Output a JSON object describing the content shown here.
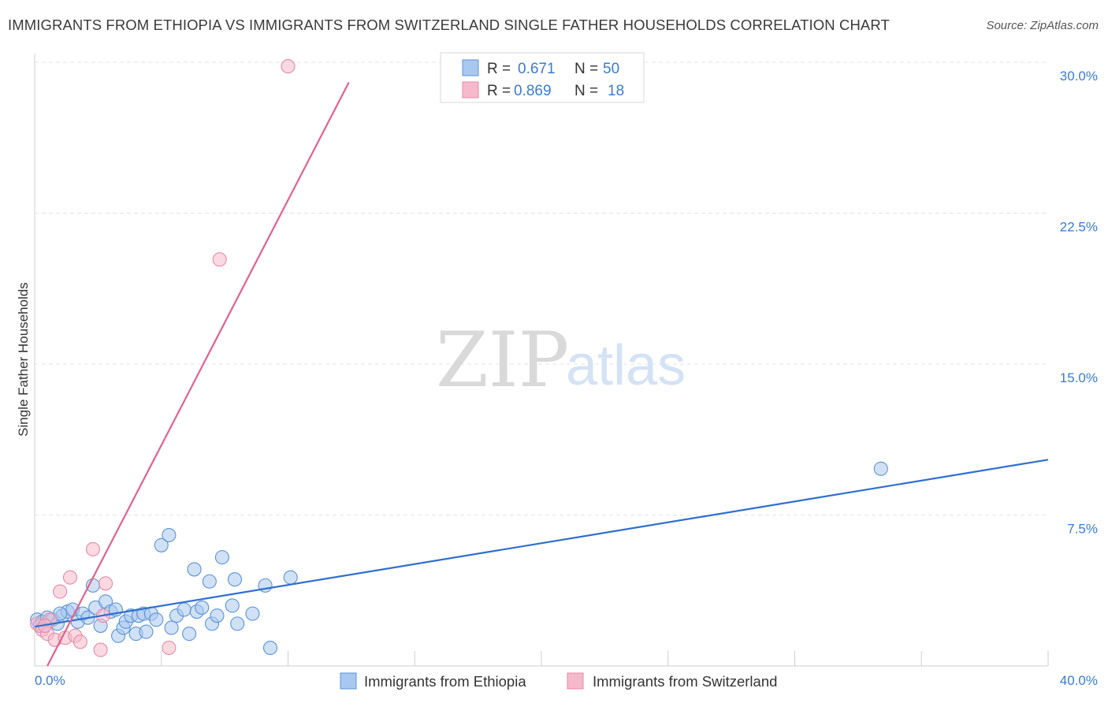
{
  "title": "IMMIGRANTS FROM ETHIOPIA VS IMMIGRANTS FROM SWITZERLAND SINGLE FATHER HOUSEHOLDS CORRELATION CHART",
  "source": "Source: ZipAtlas.com",
  "watermark": {
    "zip": "ZIP",
    "atlas": "atlas"
  },
  "legend_top": [
    {
      "r_label": "R =",
      "r_value": "0.671",
      "n_label": "N =",
      "n_value": "50",
      "color": "#a9c8ef"
    },
    {
      "r_label": "R =",
      "r_value": "0.869",
      "n_label": "N =",
      "n_value": "18",
      "color": "#f6b9cb"
    }
  ],
  "colors": {
    "ethiopia_fill": "#a9c8ef",
    "ethiopia_stroke": "#5b93d6",
    "ethiopia_line": "#2f6fcf",
    "switzerland_fill": "#f6b9cb",
    "switzerland_stroke": "#e58aa6",
    "switzerland_line": "#e2628c",
    "axis_text": "#3b7bd0",
    "grid": "#e3e3e3"
  },
  "chart_data": {
    "type": "scatter",
    "title": "IMMIGRANTS FROM ETHIOPIA VS IMMIGRANTS FROM SWITZERLAND SINGLE FATHER HOUSEHOLDS CORRELATION CHART",
    "xlabel": "",
    "ylabel": "Single Father Households",
    "xlim": [
      0,
      40
    ],
    "ylim": [
      0,
      30
    ],
    "x_tick_labels": [
      "0.0%",
      "40.0%"
    ],
    "y_ticks": [
      7.5,
      15.0,
      22.5,
      30.0
    ],
    "y_tick_labels": [
      "7.5%",
      "15.0%",
      "22.5%",
      "30.0%"
    ],
    "grid": true,
    "legend_placement": "top-center",
    "series": [
      {
        "name": "Immigrants from Ethiopia",
        "trend": [
          [
            0,
            1.95
          ],
          [
            40,
            10.25
          ]
        ],
        "points": [
          [
            0.1,
            2.3
          ],
          [
            0.3,
            2.2
          ],
          [
            0.5,
            2.4
          ],
          [
            0.7,
            2.3
          ],
          [
            0.9,
            2.1
          ],
          [
            1.1,
            2.5
          ],
          [
            1.3,
            2.7
          ],
          [
            1.5,
            2.8
          ],
          [
            1.7,
            2.2
          ],
          [
            1.9,
            2.6
          ],
          [
            2.1,
            2.4
          ],
          [
            2.3,
            4.0
          ],
          [
            2.4,
            2.9
          ],
          [
            2.6,
            2.0
          ],
          [
            2.8,
            3.2
          ],
          [
            3.0,
            2.7
          ],
          [
            3.2,
            2.8
          ],
          [
            3.3,
            1.5
          ],
          [
            3.5,
            1.9
          ],
          [
            3.6,
            2.2
          ],
          [
            3.8,
            2.5
          ],
          [
            4.0,
            1.6
          ],
          [
            4.1,
            2.5
          ],
          [
            4.3,
            2.6
          ],
          [
            4.4,
            1.7
          ],
          [
            4.6,
            2.6
          ],
          [
            4.8,
            2.3
          ],
          [
            5.0,
            6.0
          ],
          [
            5.3,
            6.5
          ],
          [
            5.4,
            1.9
          ],
          [
            5.6,
            2.5
          ],
          [
            5.9,
            2.8
          ],
          [
            6.1,
            1.6
          ],
          [
            6.3,
            4.8
          ],
          [
            6.4,
            2.7
          ],
          [
            6.6,
            2.9
          ],
          [
            6.9,
            4.2
          ],
          [
            7.0,
            2.1
          ],
          [
            7.2,
            2.5
          ],
          [
            7.4,
            5.4
          ],
          [
            7.8,
            3.0
          ],
          [
            7.9,
            4.3
          ],
          [
            8.0,
            2.1
          ],
          [
            8.6,
            2.6
          ],
          [
            9.1,
            4.0
          ],
          [
            9.3,
            0.9
          ],
          [
            10.1,
            4.4
          ],
          [
            33.4,
            9.8
          ],
          [
            0.2,
            2.0
          ],
          [
            1.0,
            2.6
          ]
        ]
      },
      {
        "name": "Immigrants from Switzerland",
        "trend": [
          [
            0.5,
            0.0
          ],
          [
            12.4,
            29.0
          ]
        ],
        "points": [
          [
            0.1,
            2.1
          ],
          [
            0.3,
            1.8
          ],
          [
            0.5,
            1.6
          ],
          [
            0.6,
            2.3
          ],
          [
            0.8,
            1.3
          ],
          [
            1.0,
            3.7
          ],
          [
            1.2,
            1.4
          ],
          [
            1.4,
            4.4
          ],
          [
            1.6,
            1.5
          ],
          [
            1.8,
            1.2
          ],
          [
            2.3,
            5.8
          ],
          [
            2.6,
            0.8
          ],
          [
            2.7,
            2.5
          ],
          [
            2.8,
            4.1
          ],
          [
            5.3,
            0.9
          ],
          [
            7.3,
            20.2
          ],
          [
            10.0,
            29.8
          ],
          [
            0.4,
            2.0
          ]
        ]
      }
    ]
  },
  "bottom_legend": [
    {
      "label": "Immigrants from Ethiopia",
      "color": "#a9c8ef"
    },
    {
      "label": "Immigrants from Switzerland",
      "color": "#f6b9cb"
    }
  ]
}
